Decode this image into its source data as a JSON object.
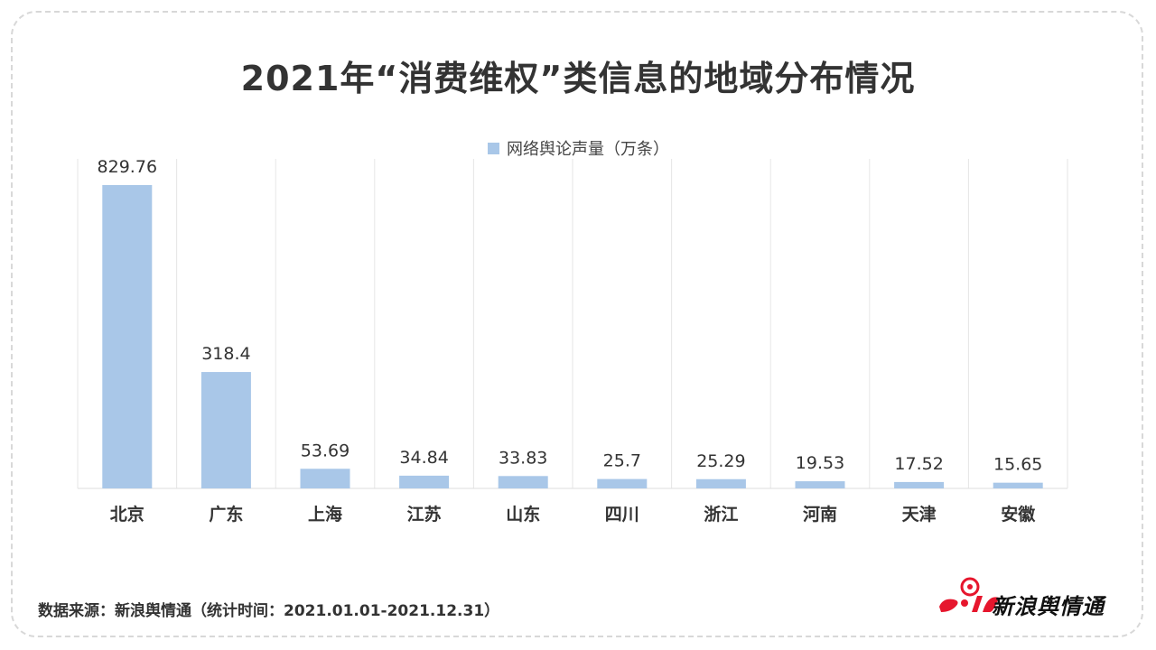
{
  "title": "2021年“消费维权”类信息的地域分布情况",
  "legend": {
    "label": "网络舆论声量（万条）"
  },
  "source": "数据来源：新浪舆情通（统计时间：2021.01.01-2021.12.31）",
  "logo": {
    "text": "新浪舆情通"
  },
  "colors": {
    "bar": "#a9c7e8",
    "grid": "#e6e6e6",
    "logo_red": "#e6162d"
  },
  "chart_data": {
    "type": "bar",
    "title": "2021年“消费维权”类信息的地域分布情况",
    "categories": [
      "北京",
      "广东",
      "上海",
      "江苏",
      "山东",
      "四川",
      "浙江",
      "河南",
      "天津",
      "安徽"
    ],
    "series": [
      {
        "name": "网络舆论声量（万条）",
        "values": [
          829.76,
          318.4,
          53.69,
          34.84,
          33.83,
          25.7,
          25.29,
          19.53,
          17.52,
          15.65
        ]
      }
    ],
    "value_labels": [
      "829.76",
      "318.4",
      "53.69",
      "34.84",
      "33.83",
      "25.7",
      "25.29",
      "19.53",
      "17.52",
      "15.65"
    ],
    "ylim": [
      0,
      829.76
    ],
    "grid": true,
    "legend_position": "top-center"
  }
}
